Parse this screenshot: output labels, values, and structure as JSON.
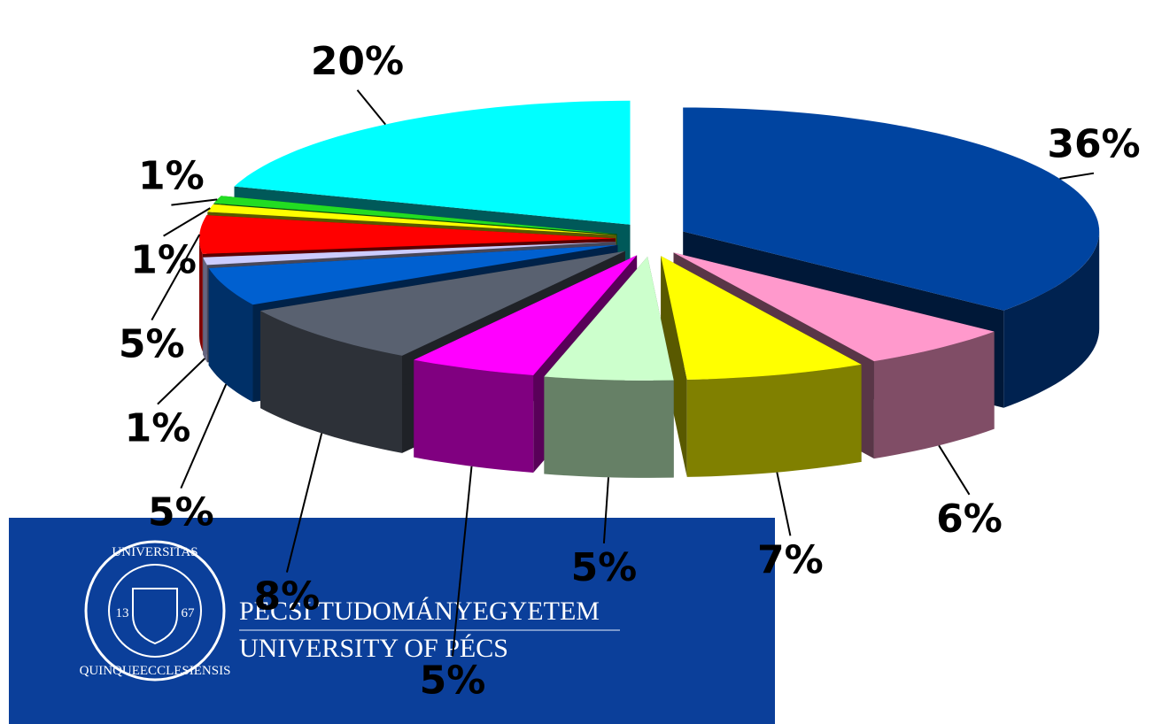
{
  "chart_data": {
    "type": "pie3d",
    "values": [
      36,
      6,
      7,
      5,
      5,
      8,
      5,
      1,
      5,
      1,
      1,
      20
    ],
    "value_labels": [
      "36%",
      "6%",
      "7%",
      "5%",
      "5%",
      "8%",
      "5%",
      "1%",
      "5%",
      "1%",
      "1%",
      "20%"
    ],
    "colors": [
      "#0044a0",
      "#ff99cc",
      "#ffff00",
      "#ccffcc",
      "#ff00ff",
      "#596170",
      "#0060d0",
      "#ccccff",
      "#ff0000",
      "#ffff00",
      "#22dd22",
      "#00ffff"
    ],
    "exploded": true
  },
  "logo": {
    "line1": "PÉCSI TUDOMÁNYEGYETEM",
    "line2": "UNIVERSITY OF PÉCS",
    "seal_top": "UNIVERSITAS",
    "seal_bottom": "QUINQUEECCLESIENSIS",
    "seal_left": "13",
    "seal_right": "67"
  }
}
